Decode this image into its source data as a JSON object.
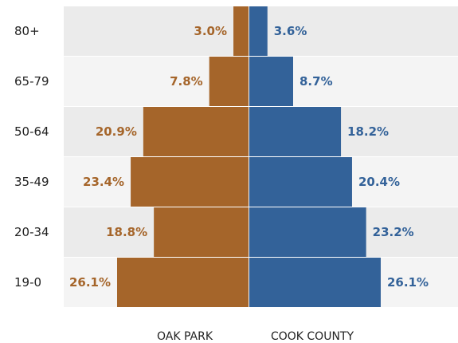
{
  "chart_data": {
    "type": "pyramid",
    "categories": [
      "80+",
      "65-79",
      "50-64",
      "35-49",
      "20-34",
      "19-0"
    ],
    "series": [
      {
        "name": "OAK PARK",
        "color": "#a5652a",
        "values": [
          3.0,
          7.8,
          20.9,
          23.4,
          18.8,
          26.1
        ],
        "value_labels": [
          "3.0%",
          "7.8%",
          "20.9%",
          "23.4%",
          "18.8%",
          "26.1%"
        ]
      },
      {
        "name": "COOK COUNTY",
        "color": "#336299",
        "values": [
          3.6,
          8.7,
          18.2,
          20.4,
          23.2,
          26.1
        ],
        "value_labels": [
          "3.6%",
          "8.7%",
          "18.2%",
          "20.4%",
          "23.2%",
          "26.1%"
        ]
      }
    ]
  }
}
